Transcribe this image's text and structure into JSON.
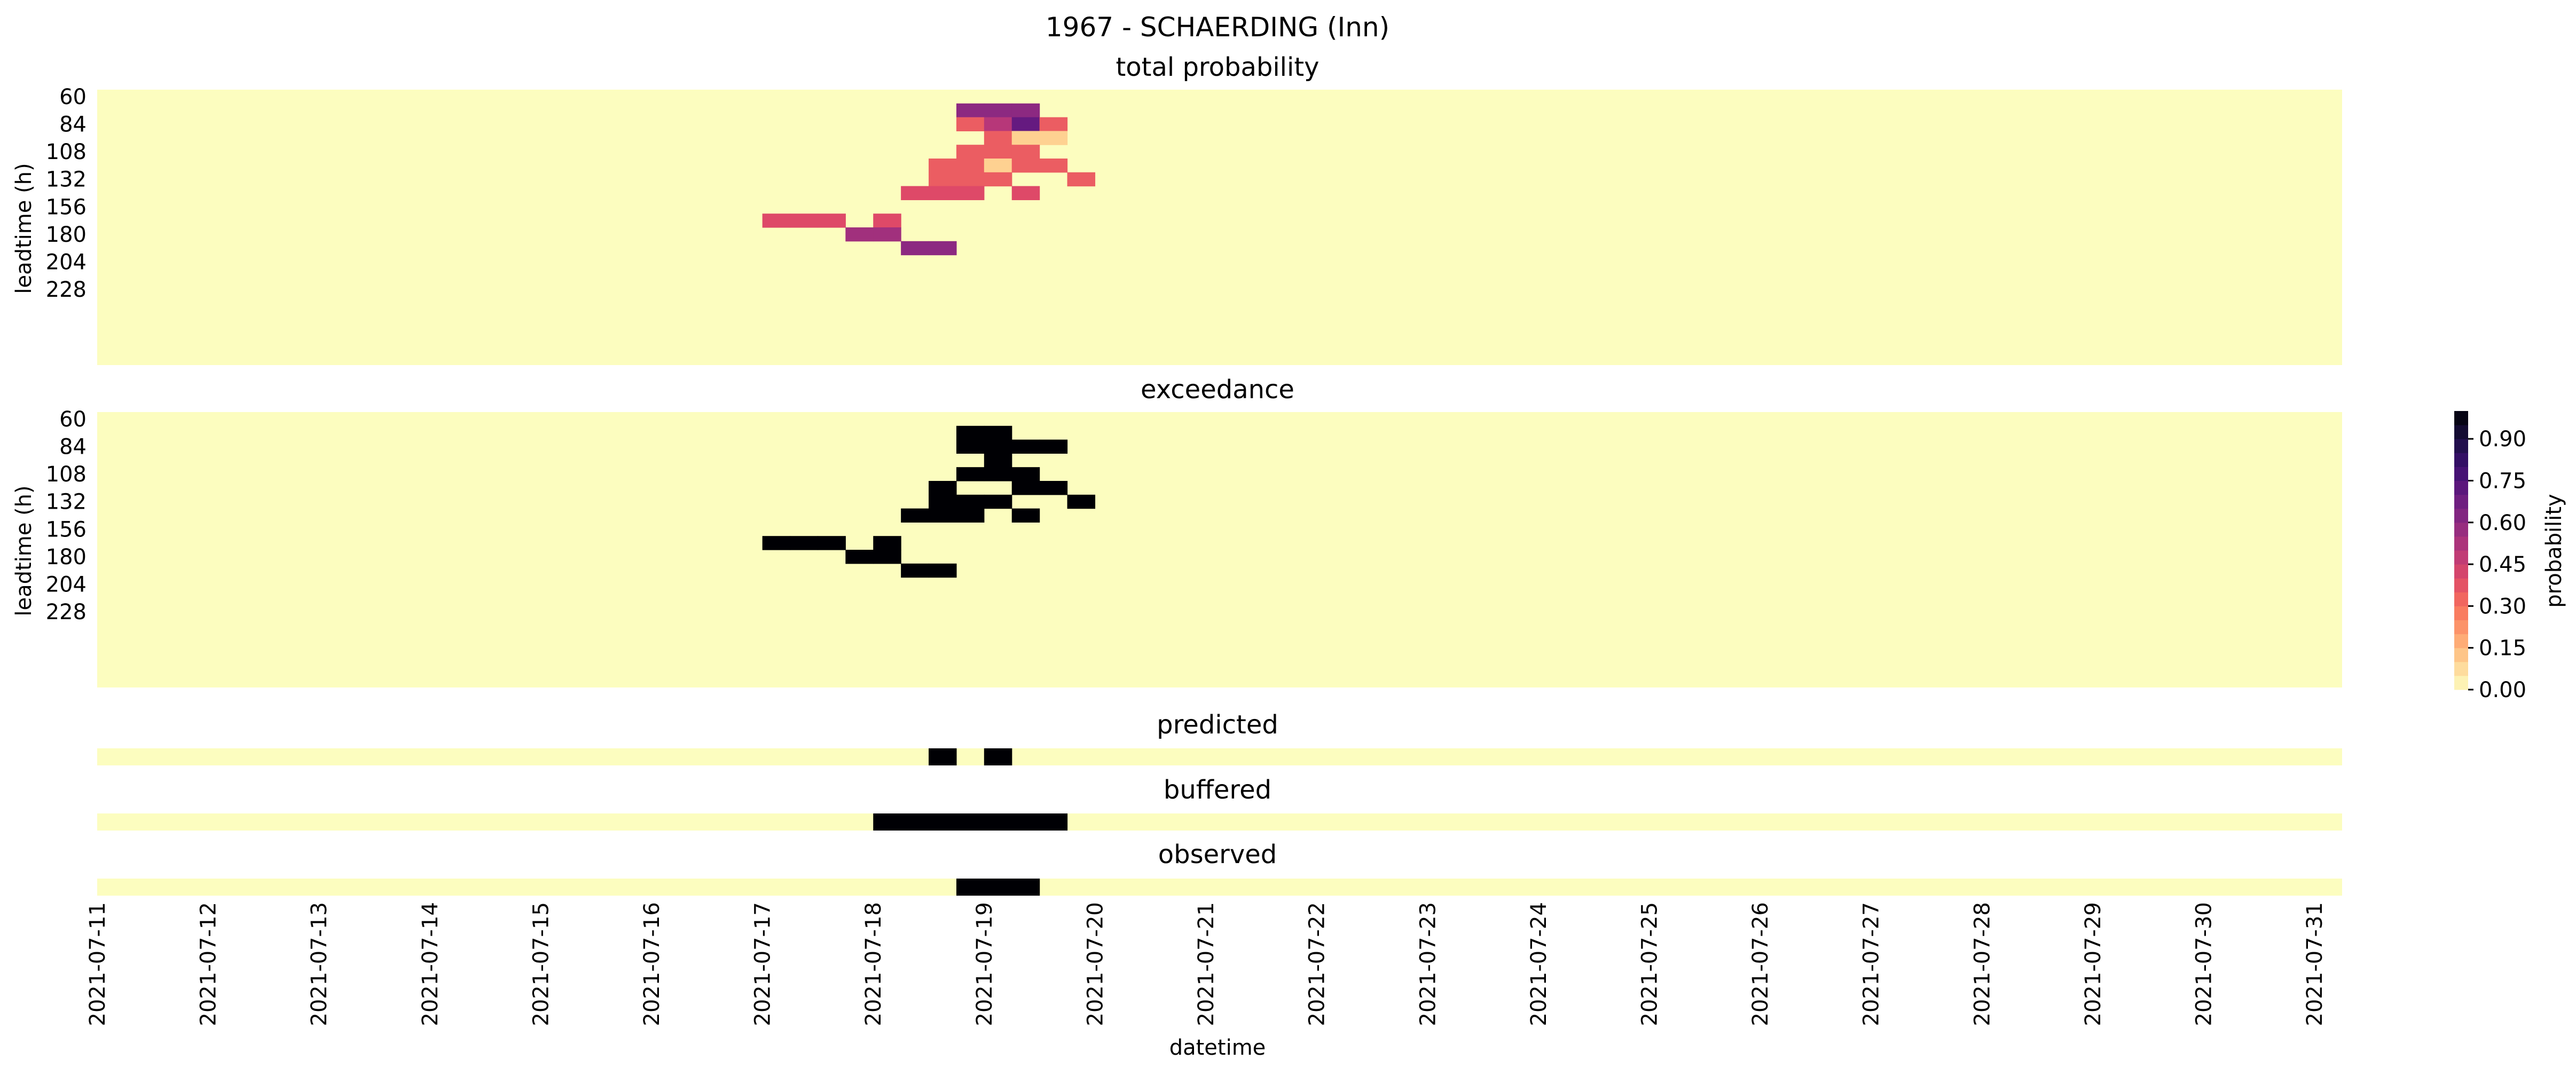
{
  "chart_data": {
    "type": "heatmap",
    "title": "1967 - SCHAERDING (Inn)",
    "xlabel": "datetime",
    "x_tick_labels": [
      "2021-07-11",
      "2021-07-12",
      "2021-07-13",
      "2021-07-14",
      "2021-07-15",
      "2021-07-16",
      "2021-07-17",
      "2021-07-18",
      "2021-07-19",
      "2021-07-20",
      "2021-07-21",
      "2021-07-22",
      "2021-07-23",
      "2021-07-24",
      "2021-07-25",
      "2021-07-26",
      "2021-07-27",
      "2021-07-28",
      "2021-07-29",
      "2021-07-30",
      "2021-07-31"
    ],
    "time_step_hours": 6,
    "n_time_steps": 81,
    "n_leadtimes": 20,
    "leadtime_tick_labels": [
      "60",
      "84",
      "108",
      "132",
      "156",
      "180",
      "204",
      "228"
    ],
    "leadtime_label": "leadtime (h)",
    "colorbar": {
      "label": "probability",
      "tick_labels": [
        "0.00",
        "0.15",
        "0.30",
        "0.45",
        "0.60",
        "0.75",
        "0.90"
      ],
      "range": [
        0,
        1
      ],
      "colormap": "magma_r"
    },
    "panels": {
      "total_probability": {
        "title": "total probability",
        "cells": [
          [
            1,
            31,
            0.6
          ],
          [
            1,
            32,
            0.6
          ],
          [
            1,
            33,
            0.6
          ],
          [
            2,
            31,
            0.35
          ],
          [
            2,
            32,
            0.5
          ],
          [
            2,
            33,
            0.7
          ],
          [
            2,
            34,
            0.35
          ],
          [
            3,
            32,
            0.35
          ],
          [
            3,
            33,
            0.1
          ],
          [
            3,
            34,
            0.1
          ],
          [
            4,
            31,
            0.35
          ],
          [
            4,
            32,
            0.35
          ],
          [
            4,
            33,
            0.35
          ],
          [
            5,
            30,
            0.35
          ],
          [
            5,
            31,
            0.35
          ],
          [
            5,
            32,
            0.1
          ],
          [
            5,
            33,
            0.35
          ],
          [
            5,
            34,
            0.35
          ],
          [
            6,
            30,
            0.35
          ],
          [
            6,
            31,
            0.35
          ],
          [
            6,
            32,
            0.35
          ],
          [
            6,
            35,
            0.35
          ],
          [
            7,
            29,
            0.4
          ],
          [
            7,
            30,
            0.4
          ],
          [
            7,
            31,
            0.4
          ],
          [
            7,
            33,
            0.4
          ],
          [
            9,
            24,
            0.4
          ],
          [
            9,
            25,
            0.4
          ],
          [
            9,
            26,
            0.4
          ],
          [
            9,
            28,
            0.4
          ],
          [
            10,
            27,
            0.55
          ],
          [
            10,
            28,
            0.55
          ],
          [
            11,
            29,
            0.6
          ],
          [
            11,
            30,
            0.6
          ]
        ]
      },
      "exceedance": {
        "title": "exceedance",
        "cells": [
          [
            1,
            31,
            1
          ],
          [
            1,
            32,
            1
          ],
          [
            2,
            31,
            1
          ],
          [
            2,
            32,
            1
          ],
          [
            2,
            33,
            1
          ],
          [
            2,
            34,
            1
          ],
          [
            3,
            32,
            1
          ],
          [
            4,
            31,
            1
          ],
          [
            4,
            32,
            1
          ],
          [
            4,
            33,
            1
          ],
          [
            5,
            30,
            1
          ],
          [
            5,
            33,
            1
          ],
          [
            5,
            34,
            1
          ],
          [
            6,
            30,
            1
          ],
          [
            6,
            31,
            1
          ],
          [
            6,
            32,
            1
          ],
          [
            6,
            35,
            1
          ],
          [
            7,
            29,
            1
          ],
          [
            7,
            30,
            1
          ],
          [
            7,
            31,
            1
          ],
          [
            7,
            33,
            1
          ],
          [
            9,
            24,
            1
          ],
          [
            9,
            25,
            1
          ],
          [
            9,
            26,
            1
          ],
          [
            9,
            28,
            1
          ],
          [
            10,
            27,
            1
          ],
          [
            10,
            28,
            1
          ],
          [
            11,
            29,
            1
          ],
          [
            11,
            30,
            1
          ]
        ]
      },
      "predicted": {
        "title": "predicted",
        "cells": [
          30,
          32
        ]
      },
      "buffered": {
        "title": "buffered",
        "cells": [
          28,
          29,
          30,
          31,
          32,
          33,
          34
        ]
      },
      "observed": {
        "title": "observed",
        "cells": [
          31,
          32,
          33
        ]
      }
    },
    "colors": {
      "background": "#fcfdbf",
      "exceed": "#000004"
    },
    "grid": false,
    "legend": "colorbar-right"
  }
}
